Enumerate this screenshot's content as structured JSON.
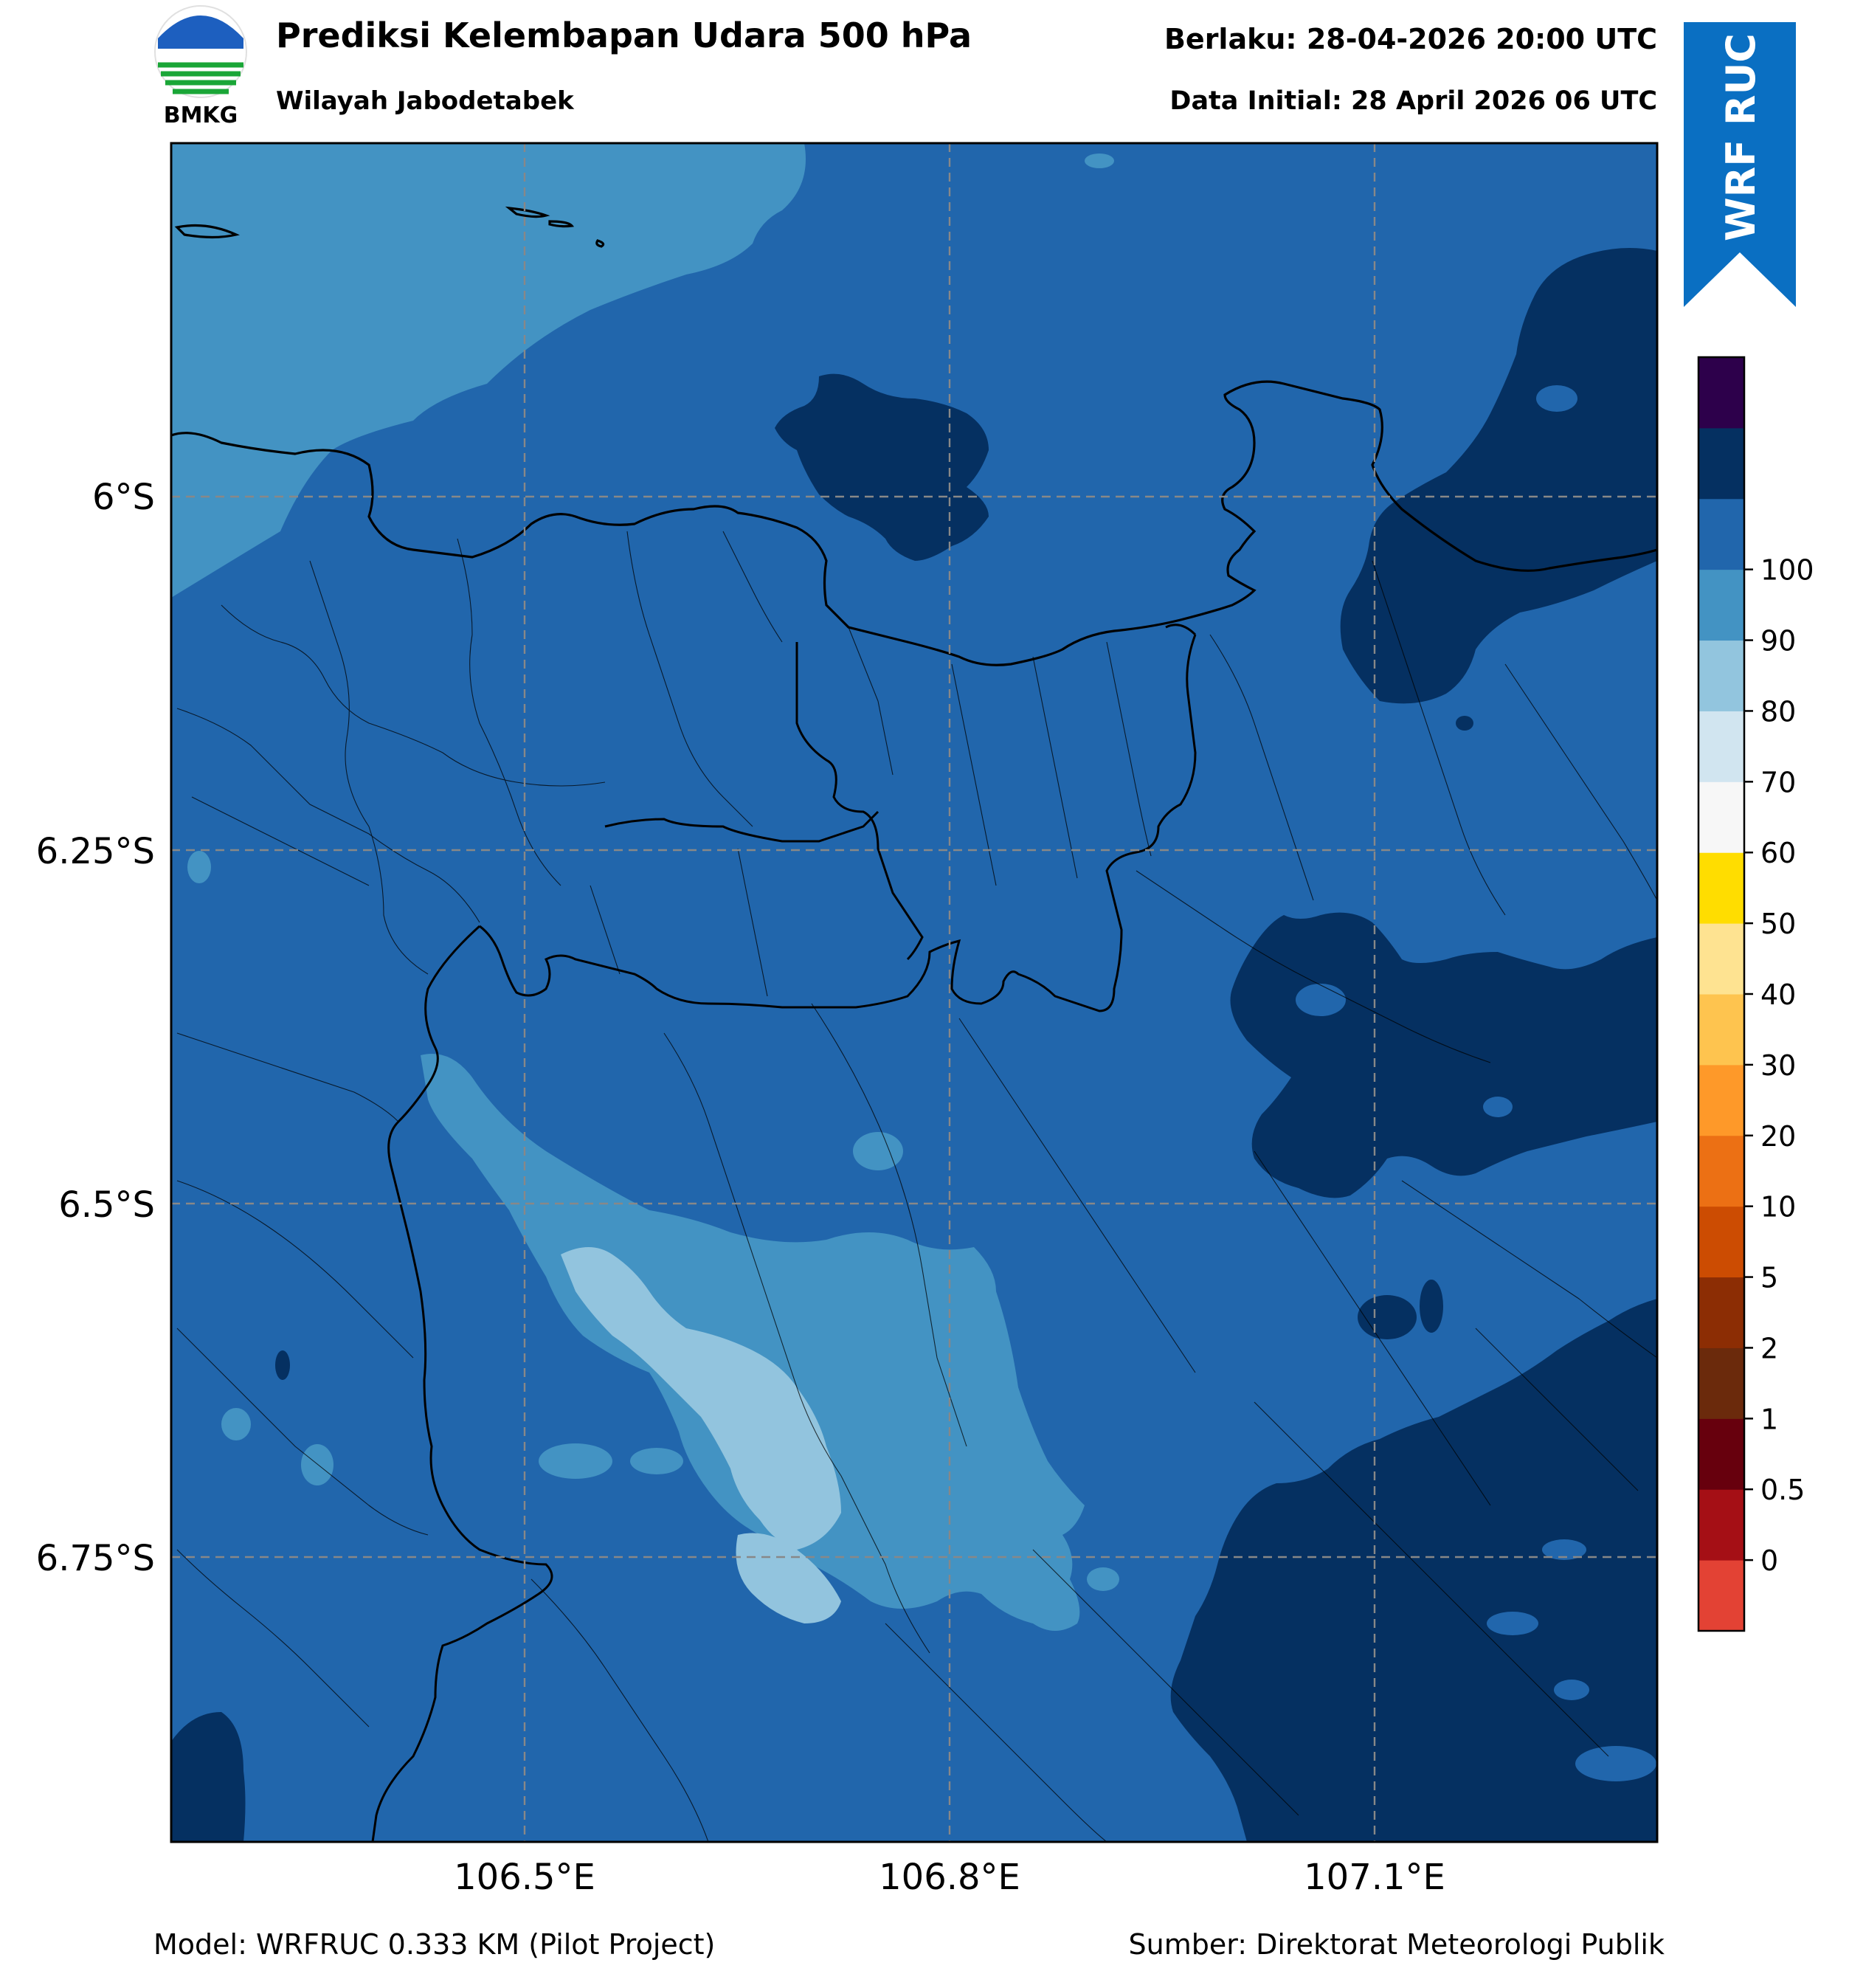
{
  "header": {
    "logo_text": "BMKG",
    "title": "Prediksi Kelembapan Udara 500 hPa",
    "subtitle": "Wilayah Jabodetabek",
    "valid": "Berlaku: 28-04-2026 20:00 UTC",
    "initial": "Data Initial: 28 April 2026 06 UTC"
  },
  "badge": {
    "text": "WRF RUC",
    "color": "#0a6fc2"
  },
  "map": {
    "lat_labels": [
      "6°S",
      "6.25°S",
      "6.5°S",
      "6.75°S"
    ],
    "lon_labels": [
      "106.5°E",
      "106.8°E",
      "107.1°E"
    ],
    "levels": {
      "60_70": "#92c4de",
      "70_80": "#4393c3",
      "80_90": "#2166ac",
      "90_100": "#053061"
    }
  },
  "colorbar": {
    "labels": [
      "0",
      "0.5",
      "1",
      "2",
      "5",
      "10",
      "20",
      "30",
      "40",
      "50",
      "60",
      "70",
      "80",
      "90",
      "100"
    ],
    "colors": [
      "#e34234",
      "#a50f15",
      "#67000d",
      "#6b2a0c",
      "#8c2d04",
      "#cc4c02",
      "#ec7014",
      "#fe9929",
      "#fec44f",
      "#fee391",
      "#ffdd00",
      "#f7f7f7",
      "#d1e5f0",
      "#92c5de",
      "#4393c3",
      "#2166ac",
      "#053061",
      "#2d004b"
    ]
  },
  "footer": {
    "model": "Model: WRFRUC 0.333 KM (Pilot Project)",
    "source": "Sumber: Direktorat Meteorologi Publik"
  }
}
